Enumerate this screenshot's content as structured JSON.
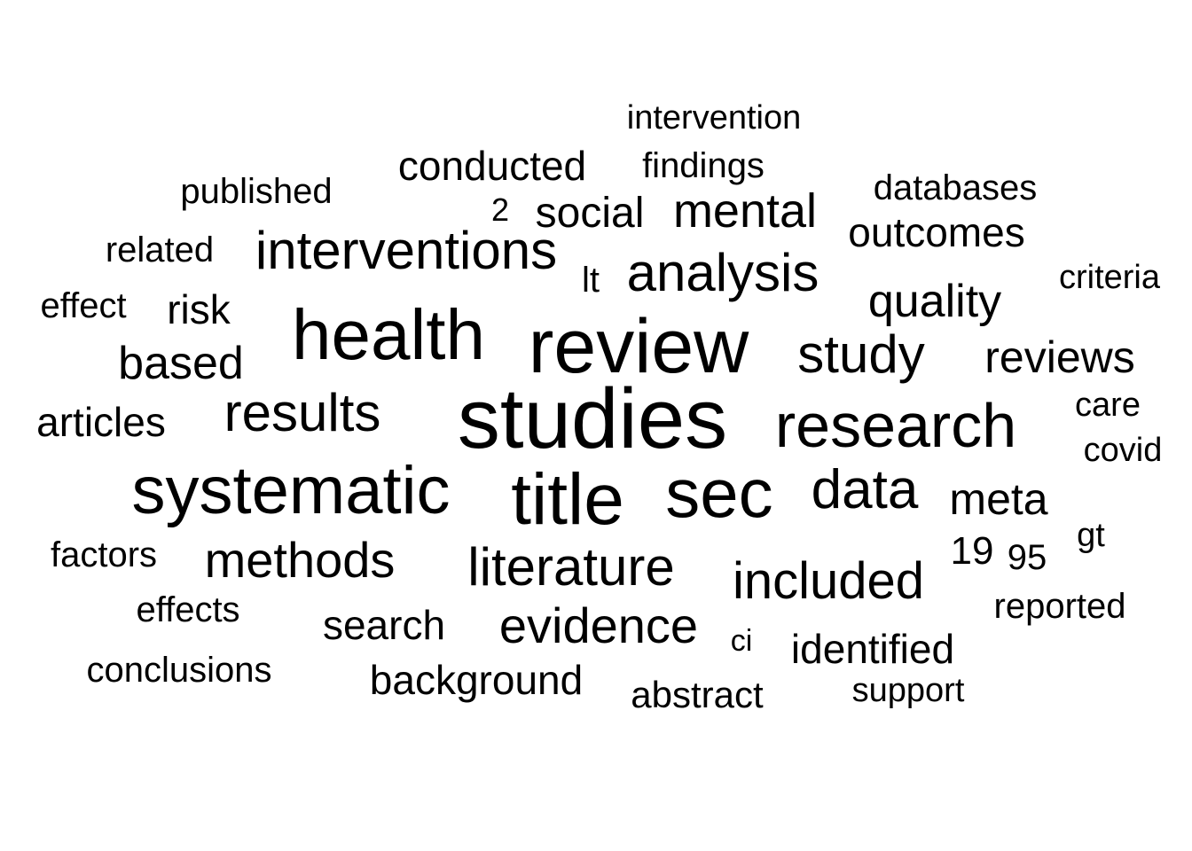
{
  "word_cloud": {
    "text_color": "#000000",
    "background": "#ffffff",
    "words": [
      "studies",
      "review",
      "health",
      "title",
      "sec",
      "systematic",
      "research",
      "data",
      "analysis",
      "study",
      "interventions",
      "results",
      "literature",
      "included",
      "mental",
      "methods",
      "evidence",
      "quality",
      "meta",
      "social",
      "reviews",
      "based",
      "outcomes",
      "conducted",
      "search",
      "background",
      "identified",
      "articles",
      "19",
      "risk",
      "95",
      "published",
      "abstract",
      "reported",
      "factors",
      "effects",
      "conclusions",
      "databases",
      "findings",
      "related",
      "effect",
      "lt",
      "intervention",
      "support",
      "care",
      "covid",
      "criteria",
      "gt",
      "2",
      "ci"
    ]
  }
}
